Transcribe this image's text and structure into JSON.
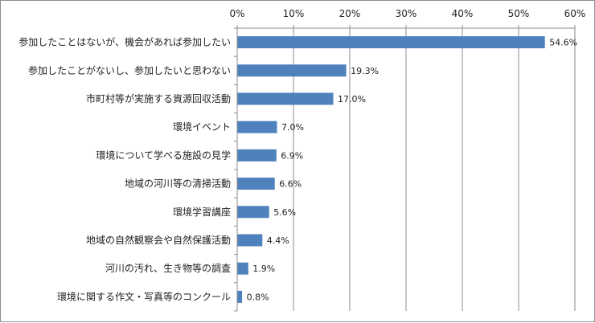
{
  "chart_data": {
    "type": "bar",
    "orientation": "horizontal",
    "categories": [
      "参加したことはないが、機会があれば参加したい",
      "参加したことがないし、参加したいと思わない",
      "市町村等が実施する資源回収活動",
      "環境イベント",
      "環境について学べる施設の見学",
      "地域の河川等の清掃活動",
      "環境学習講座",
      "地域の自然観察会や自然保護活動",
      "河川の汚れ、生き物等の調査",
      "環境に関する作文・写真等のコンクール"
    ],
    "values": [
      54.6,
      19.3,
      17.0,
      7.0,
      6.9,
      6.6,
      5.6,
      4.4,
      1.9,
      0.8
    ],
    "value_labels": [
      "54.6%",
      "19.3%",
      "17.0%",
      "7.0%",
      "6.9%",
      "6.6%",
      "5.6%",
      "4.4%",
      "1.9%",
      "0.8%"
    ],
    "xlim": [
      0,
      60
    ],
    "xticks": [
      0,
      10,
      20,
      30,
      40,
      50,
      60
    ],
    "xtick_labels": [
      "0%",
      "10%",
      "20%",
      "30%",
      "40%",
      "50%",
      "60%"
    ],
    "axis_position": "top",
    "grid": true,
    "bar_color": "#4f81bd",
    "grid_color": "#8c8c8c",
    "title": "",
    "xlabel": "",
    "ylabel": ""
  }
}
